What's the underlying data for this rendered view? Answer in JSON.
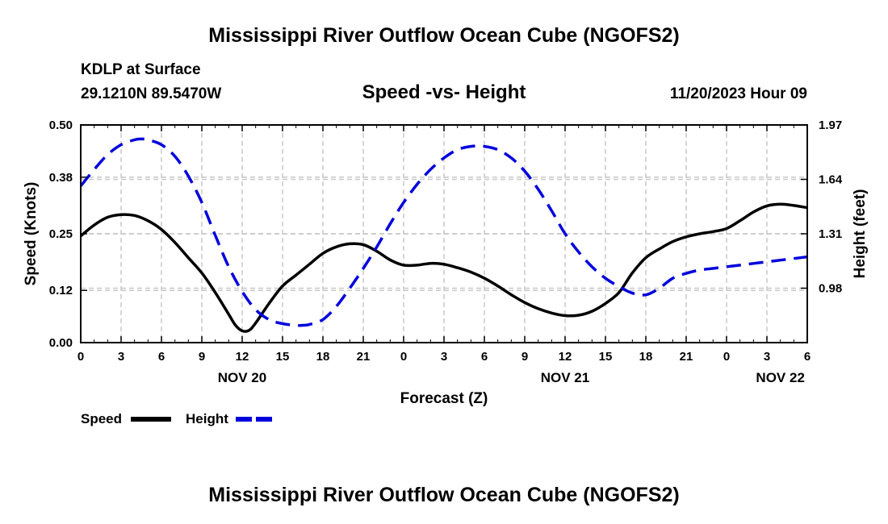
{
  "header": {
    "title": "Mississippi River Outflow Ocean Cube (NGOFS2)",
    "station": "KDLP at Surface",
    "coords": "29.1210N  89.5470W",
    "datetime": "11/20/2023 Hour 09",
    "footer_title": "Mississippi River Outflow Ocean Cube (NGOFS2)"
  },
  "chart_data": {
    "type": "line",
    "title": "Speed -vs- Height",
    "xlabel": "Forecast (Z)",
    "ylabel": "Speed (Knots)",
    "y2label": "Height (feet)",
    "x_range": [
      0,
      54
    ],
    "ylim": [
      0,
      0.5
    ],
    "y2lim": [
      0.65,
      1.97
    ],
    "yticks": [
      0.0,
      0.12,
      0.25,
      0.38,
      0.5
    ],
    "ytick_labels": [
      "0.00",
      "0.12",
      "0.25",
      "0.38",
      "0.50"
    ],
    "y2ticks": [
      0.98,
      1.31,
      1.64,
      1.97
    ],
    "y2tick_labels": [
      "0.98",
      "1.31",
      "1.64",
      "1.97"
    ],
    "xticks": [
      0,
      3,
      6,
      9,
      12,
      15,
      18,
      21,
      24,
      27,
      30,
      33,
      36,
      39,
      42,
      45,
      48,
      51,
      54
    ],
    "xtick_labels": [
      "0",
      "3",
      "6",
      "9",
      "12",
      "15",
      "18",
      "21",
      "0",
      "3",
      "6",
      "9",
      "12",
      "15",
      "18",
      "21",
      "0",
      "3",
      "6"
    ],
    "date_labels": [
      {
        "x": 12,
        "label": "NOV 20"
      },
      {
        "x": 36,
        "label": "NOV 21"
      },
      {
        "x": 52,
        "label": "NOV 22"
      }
    ],
    "legend_position": "bottom-left",
    "series": [
      {
        "name": "Speed",
        "axis": "left",
        "color": "#000000",
        "style": "solid",
        "x": [
          0,
          1,
          2,
          3,
          4,
          5,
          6,
          7,
          8,
          9,
          10,
          11,
          11.5,
          12,
          12.5,
          13,
          14,
          15,
          16,
          17,
          18,
          19,
          20,
          21,
          22,
          23,
          24,
          25,
          26,
          27,
          28,
          29,
          30,
          31,
          32,
          33,
          34,
          35,
          36,
          37,
          38,
          39,
          40,
          41,
          42,
          43,
          44,
          45,
          46,
          47,
          48,
          49,
          50,
          51,
          52,
          53,
          54
        ],
        "values": [
          0.245,
          0.27,
          0.288,
          0.294,
          0.292,
          0.28,
          0.26,
          0.23,
          0.195,
          0.16,
          0.115,
          0.065,
          0.04,
          0.027,
          0.028,
          0.045,
          0.09,
          0.13,
          0.155,
          0.18,
          0.205,
          0.22,
          0.227,
          0.225,
          0.21,
          0.19,
          0.178,
          0.178,
          0.182,
          0.18,
          0.172,
          0.162,
          0.148,
          0.13,
          0.11,
          0.092,
          0.078,
          0.068,
          0.062,
          0.063,
          0.072,
          0.09,
          0.115,
          0.16,
          0.195,
          0.215,
          0.232,
          0.243,
          0.25,
          0.255,
          0.262,
          0.28,
          0.3,
          0.314,
          0.318,
          0.315,
          0.31
        ]
      },
      {
        "name": "Height",
        "axis": "right",
        "color": "#0000dd",
        "style": "dashed",
        "x": [
          0,
          1,
          2,
          3,
          4,
          4.5,
          5,
          6,
          7,
          8,
          9,
          10,
          11,
          12,
          13,
          14,
          15,
          16,
          16.5,
          17,
          18,
          19,
          20,
          21,
          22,
          23,
          24,
          25,
          26,
          27,
          28,
          29,
          30,
          31,
          32,
          33,
          34,
          35,
          36,
          37,
          38,
          39,
          40,
          41,
          42,
          43,
          44,
          45,
          46,
          47,
          48,
          49,
          50,
          51,
          52,
          53,
          54
        ],
        "values": [
          1.6,
          1.7,
          1.79,
          1.85,
          1.88,
          1.885,
          1.88,
          1.85,
          1.78,
          1.66,
          1.5,
          1.3,
          1.11,
          0.96,
          0.85,
          0.79,
          0.765,
          0.755,
          0.755,
          0.76,
          0.79,
          0.87,
          0.98,
          1.1,
          1.23,
          1.37,
          1.5,
          1.61,
          1.7,
          1.77,
          1.82,
          1.84,
          1.84,
          1.82,
          1.77,
          1.69,
          1.58,
          1.45,
          1.31,
          1.2,
          1.11,
          1.04,
          0.99,
          0.95,
          0.94,
          0.98,
          1.04,
          1.07,
          1.09,
          1.1,
          1.11,
          1.12,
          1.13,
          1.14,
          1.15,
          1.16,
          1.17
        ]
      }
    ]
  }
}
